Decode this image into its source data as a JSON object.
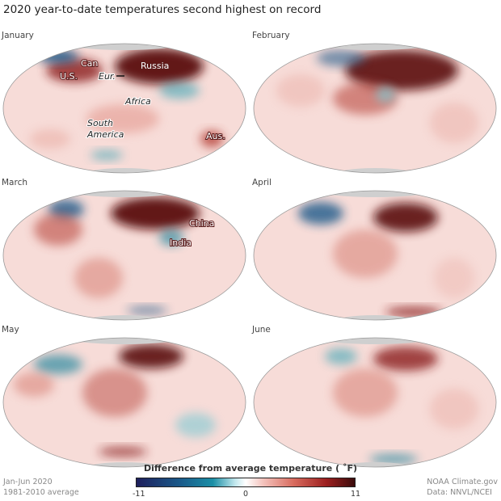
{
  "title": "2020 year-to-date temperatures second highest on record",
  "panels": [
    {
      "month": "January",
      "labels": {
        "russia": "Russia",
        "can": "Can",
        "us": "U.S.",
        "eur": "Eur.",
        "africa": "Africa",
        "south": "South",
        "america": "America",
        "aus": "Aus."
      }
    },
    {
      "month": "February"
    },
    {
      "month": "March",
      "labels": {
        "china": "China",
        "india": "India"
      }
    },
    {
      "month": "April"
    },
    {
      "month": "May"
    },
    {
      "month": "June"
    }
  ],
  "legend": {
    "title": "Difference from average temperature ( ˚F)",
    "min": "-11",
    "mid": "0",
    "max": "11",
    "colors": {
      "cold": "#1e1f5c",
      "neutral": "#ffffff",
      "warm": "#3a0b0b"
    }
  },
  "footer": {
    "period": "Jan-Jun 2020",
    "baseline": "1981-2010 average",
    "source": "NOAA Climate.gov",
    "data": "Data: NNVL/NCEI"
  }
}
